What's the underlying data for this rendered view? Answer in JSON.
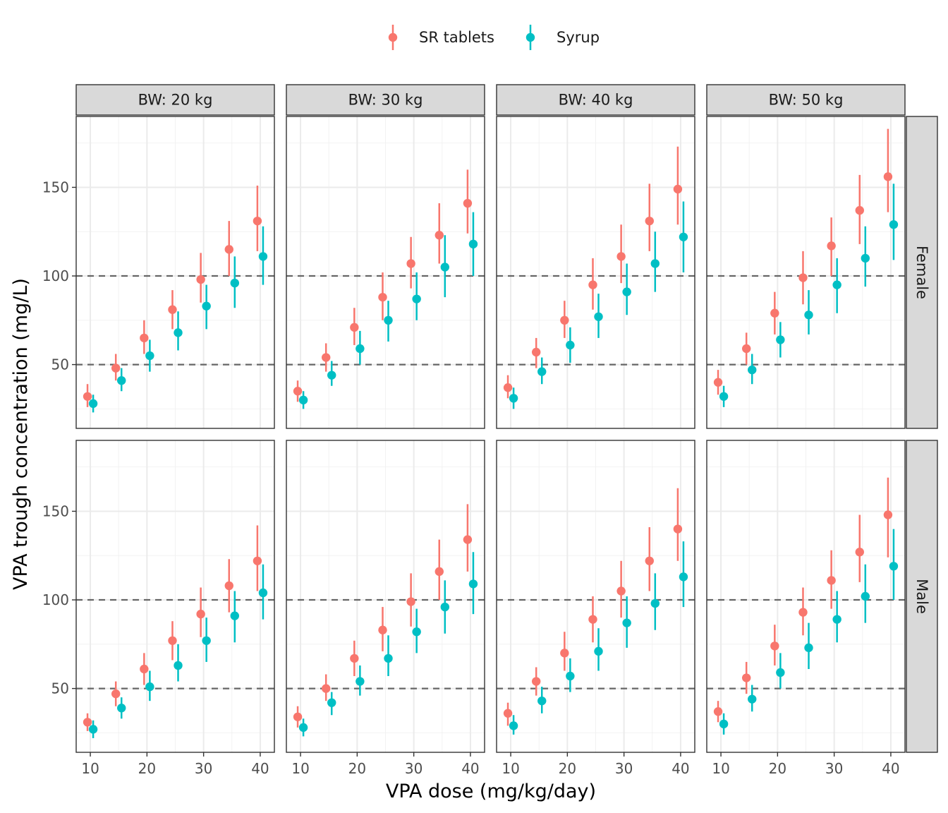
{
  "chart_data": {
    "type": "scatter",
    "title": "",
    "xlabel": "VPA dose (mg/kg/day)",
    "ylabel": "VPA trough concentration (mg/L)",
    "x_ticks": [
      10,
      20,
      30,
      40
    ],
    "y_ticks": [
      50,
      100,
      150
    ],
    "xlim": [
      7.5,
      42.5
    ],
    "ylim": [
      14,
      190
    ],
    "reference_lines": [
      50,
      100
    ],
    "legend": {
      "position": "top",
      "entries": [
        "SR tablets",
        "Syrup"
      ]
    },
    "colors": {
      "SR tablets": "#F8766D",
      "Syrup": "#00BFC4"
    },
    "doses": [
      10,
      15,
      20,
      25,
      30,
      35,
      40
    ],
    "column_facets": [
      "BW: 20 kg",
      "BW: 30 kg",
      "BW: 40 kg",
      "BW: 50 kg"
    ],
    "row_facets": [
      "Female",
      "Male"
    ],
    "panels": [
      {
        "col": 0,
        "row": 0,
        "series": [
          {
            "name": "SR tablets",
            "median": [
              32,
              48,
              65,
              81,
              98,
              115,
              131
            ],
            "lower": [
              26,
              41,
              56,
              70,
              85,
              100,
              114
            ],
            "upper": [
              39,
              56,
              75,
              92,
              113,
              131,
              151
            ]
          },
          {
            "name": "Syrup",
            "median": [
              28,
              41,
              55,
              68,
              83,
              96,
              111
            ],
            "lower": [
              23,
              35,
              46,
              58,
              70,
              82,
              95
            ],
            "upper": [
              33,
              48,
              64,
              80,
              95,
              111,
              128
            ]
          }
        ]
      },
      {
        "col": 1,
        "row": 0,
        "series": [
          {
            "name": "SR tablets",
            "median": [
              35,
              54,
              71,
              88,
              107,
              123,
              141
            ],
            "lower": [
              29,
              46,
              61,
              75,
              93,
              107,
              124
            ],
            "upper": [
              41,
              62,
              82,
              102,
              122,
              141,
              160
            ]
          },
          {
            "name": "Syrup",
            "median": [
              30,
              44,
              59,
              75,
              87,
              105,
              118
            ],
            "lower": [
              25,
              38,
              50,
              63,
              75,
              88,
              100
            ],
            "upper": [
              35,
              52,
              69,
              86,
              102,
              123,
              136
            ]
          }
        ]
      },
      {
        "col": 2,
        "row": 0,
        "series": [
          {
            "name": "SR tablets",
            "median": [
              37,
              57,
              75,
              95,
              111,
              131,
              149
            ],
            "lower": [
              31,
              48,
              65,
              81,
              96,
              114,
              129
            ],
            "upper": [
              44,
              65,
              86,
              110,
              129,
              152,
              173
            ]
          },
          {
            "name": "Syrup",
            "median": [
              31,
              46,
              61,
              77,
              91,
              107,
              122
            ],
            "lower": [
              25,
              39,
              51,
              65,
              78,
              91,
              102
            ],
            "upper": [
              37,
              54,
              71,
              90,
              107,
              125,
              142
            ]
          }
        ]
      },
      {
        "col": 3,
        "row": 0,
        "series": [
          {
            "name": "SR tablets",
            "median": [
              40,
              59,
              79,
              99,
              117,
              137,
              156
            ],
            "lower": [
              33,
              50,
              67,
              84,
              100,
              118,
              136
            ],
            "upper": [
              47,
              68,
              91,
              114,
              133,
              157,
              183
            ]
          },
          {
            "name": "Syrup",
            "median": [
              32,
              47,
              64,
              78,
              95,
              110,
              129
            ],
            "lower": [
              26,
              39,
              54,
              67,
              79,
              94,
              109
            ],
            "upper": [
              38,
              56,
              74,
              92,
              110,
              128,
              152
            ]
          }
        ]
      },
      {
        "col": 0,
        "row": 1,
        "series": [
          {
            "name": "SR tablets",
            "median": [
              31,
              47,
              61,
              77,
              92,
              108,
              122
            ],
            "lower": [
              26,
              40,
              52,
              66,
              79,
              93,
              105
            ],
            "upper": [
              36,
              54,
              70,
              88,
              107,
              123,
              142
            ]
          },
          {
            "name": "Syrup",
            "median": [
              27,
              39,
              51,
              63,
              77,
              91,
              104
            ],
            "lower": [
              22,
              33,
              43,
              54,
              65,
              76,
              89
            ],
            "upper": [
              32,
              45,
              60,
              75,
              90,
              105,
              120
            ]
          }
        ]
      },
      {
        "col": 1,
        "row": 1,
        "series": [
          {
            "name": "SR tablets",
            "median": [
              34,
              50,
              67,
              83,
              99,
              116,
              134
            ],
            "lower": [
              28,
              43,
              57,
              71,
              85,
              100,
              116
            ],
            "upper": [
              40,
              58,
              77,
              96,
              115,
              134,
              154
            ]
          },
          {
            "name": "Syrup",
            "median": [
              28,
              42,
              54,
              67,
              82,
              96,
              109
            ],
            "lower": [
              23,
              35,
              46,
              57,
              70,
              81,
              92
            ],
            "upper": [
              33,
              48,
              63,
              80,
              95,
              111,
              127
            ]
          }
        ]
      },
      {
        "col": 2,
        "row": 1,
        "series": [
          {
            "name": "SR tablets",
            "median": [
              36,
              54,
              70,
              89,
              105,
              122,
              140
            ],
            "lower": [
              29,
              46,
              60,
              76,
              90,
              105,
              122
            ],
            "upper": [
              42,
              62,
              82,
              102,
              122,
              141,
              163
            ]
          },
          {
            "name": "Syrup",
            "median": [
              29,
              43,
              57,
              71,
              87,
              98,
              113
            ],
            "lower": [
              24,
              36,
              48,
              60,
              73,
              83,
              96
            ],
            "upper": [
              35,
              51,
              67,
              84,
              102,
              115,
              133
            ]
          }
        ]
      },
      {
        "col": 3,
        "row": 1,
        "series": [
          {
            "name": "SR tablets",
            "median": [
              37,
              56,
              74,
              93,
              111,
              127,
              148
            ],
            "lower": [
              31,
              47,
              63,
              80,
              95,
              110,
              124
            ],
            "upper": [
              43,
              65,
              86,
              107,
              128,
              148,
              169
            ]
          },
          {
            "name": "Syrup",
            "median": [
              30,
              44,
              59,
              73,
              89,
              102,
              119
            ],
            "lower": [
              24,
              37,
              50,
              61,
              76,
              87,
              100
            ],
            "upper": [
              36,
              52,
              70,
              87,
              105,
              120,
              140
            ]
          }
        ]
      }
    ]
  }
}
